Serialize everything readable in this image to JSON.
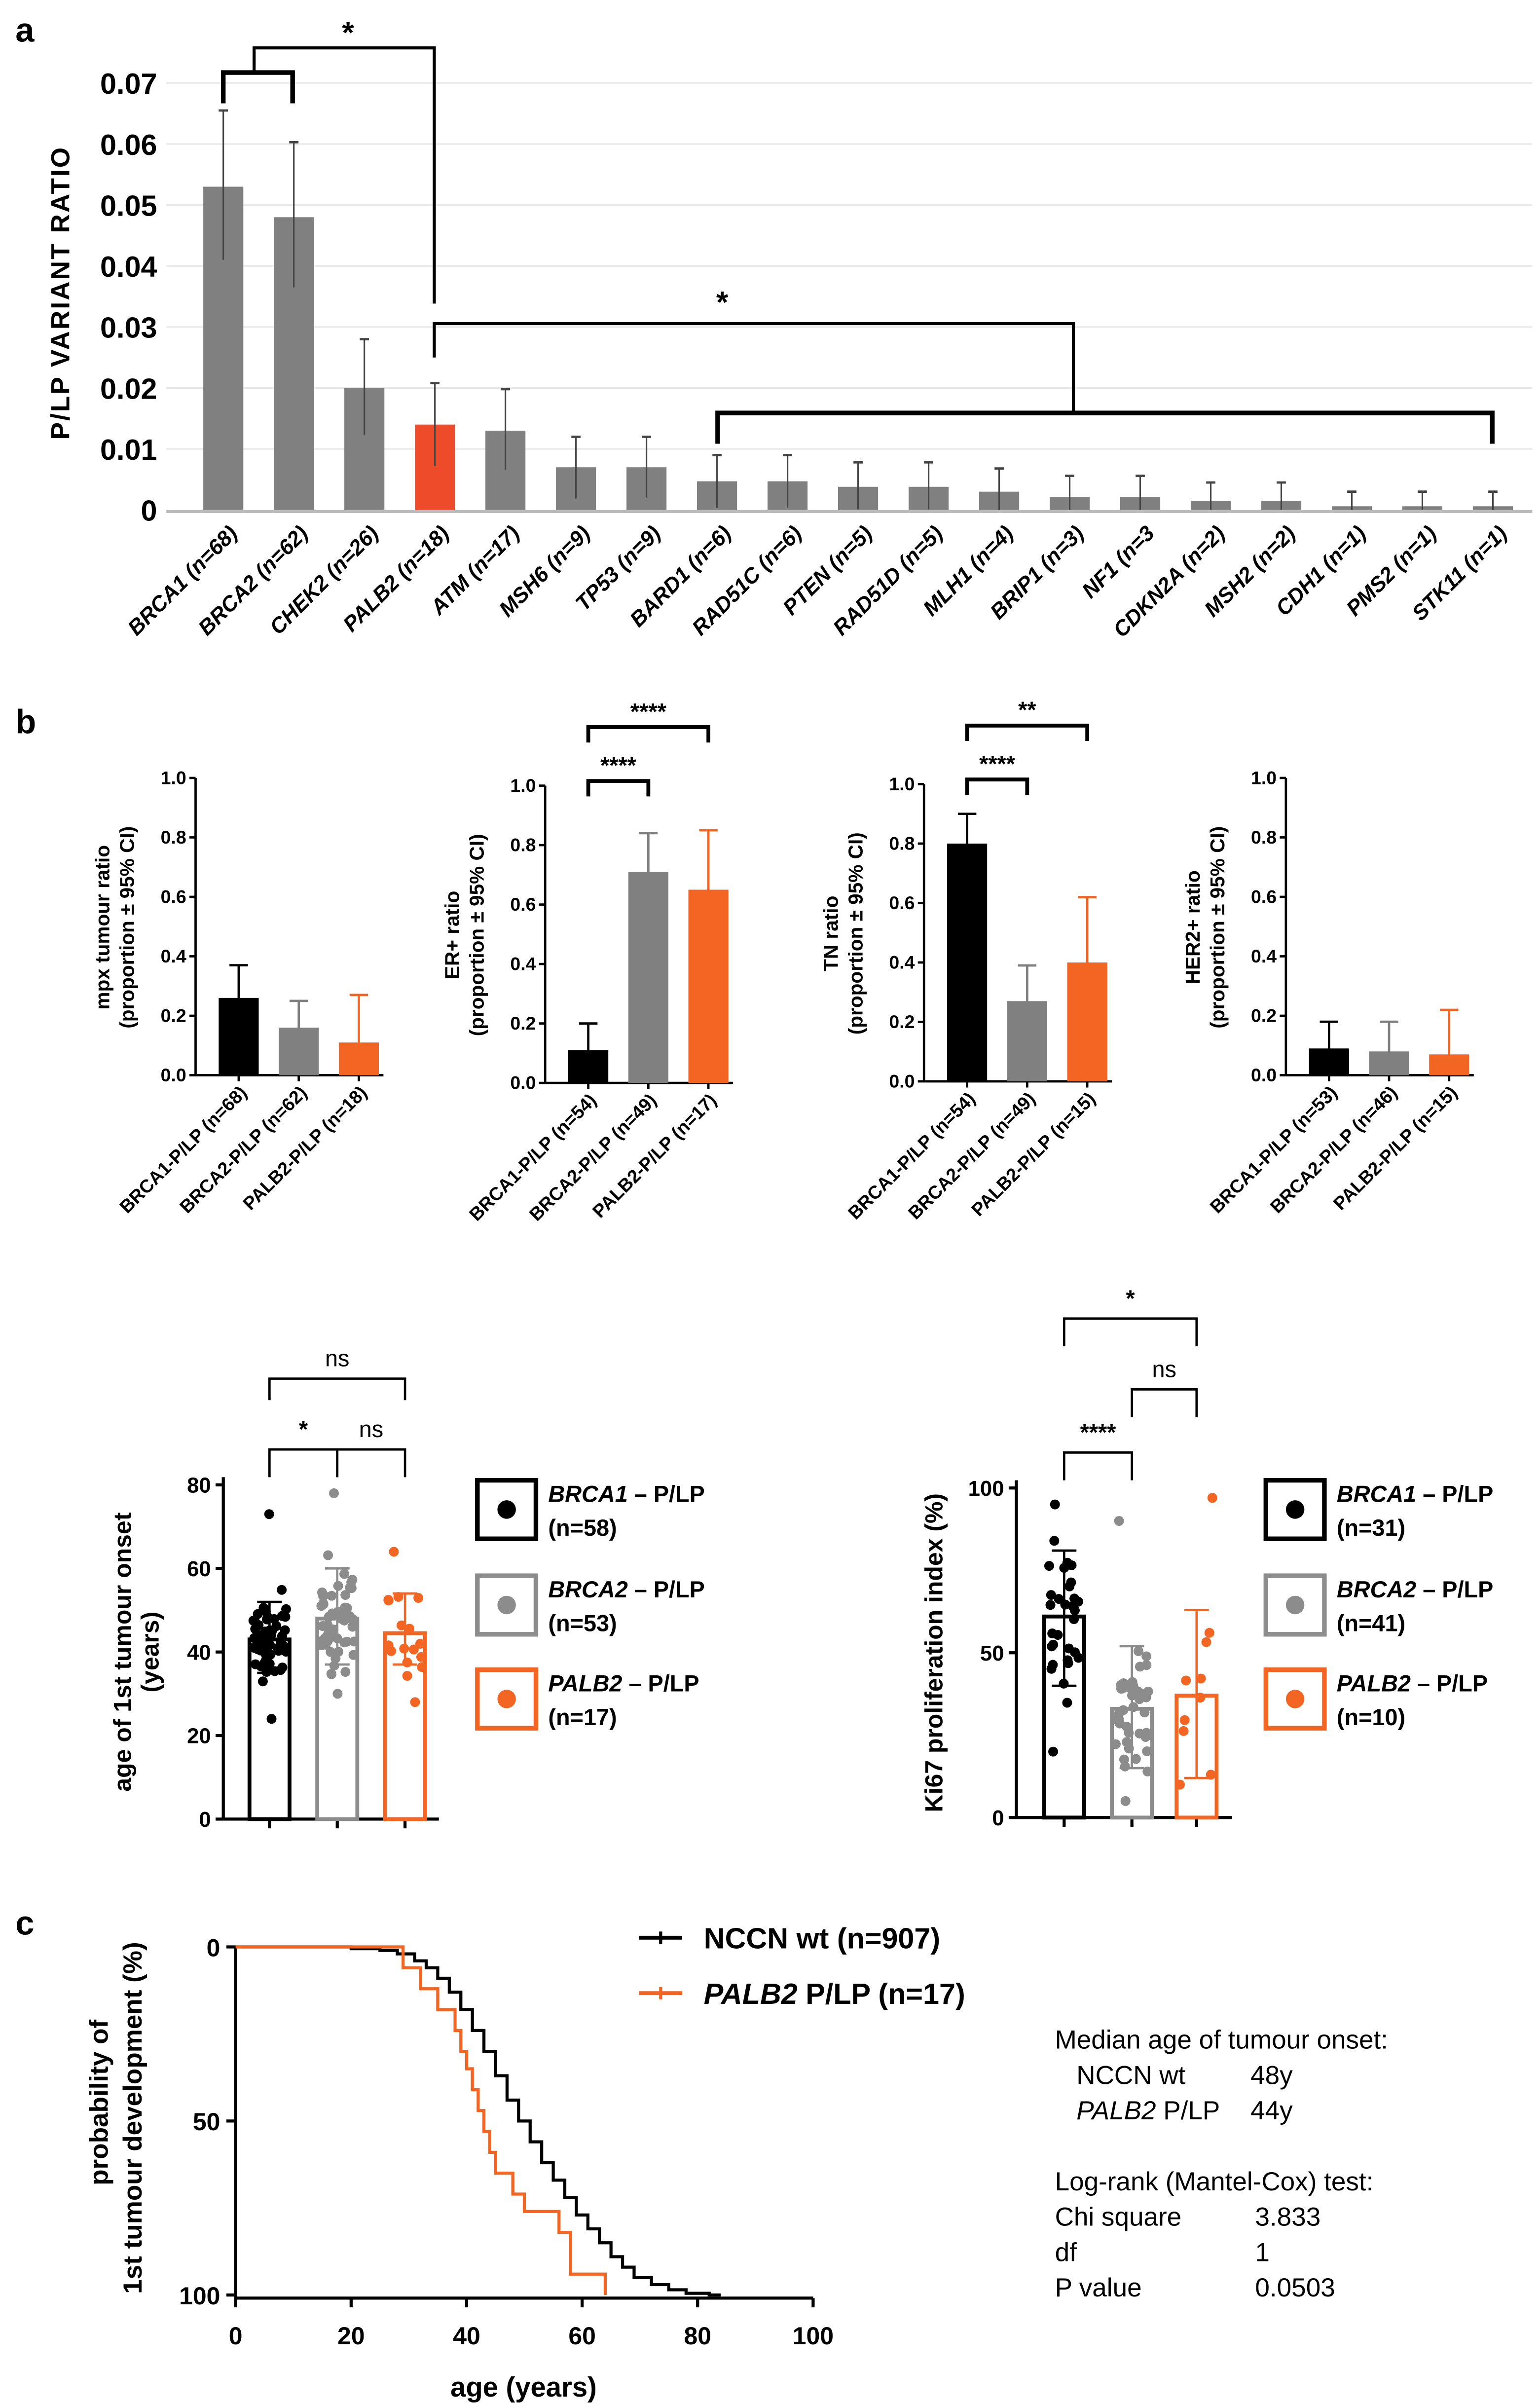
{
  "colors": {
    "grey": "#808080",
    "orange": "#f26522",
    "red": "#ee4b2b",
    "black": "#000000",
    "grid": "#e8e8e8"
  },
  "chart_data": [
    {
      "panel": "a",
      "type": "bar",
      "ylabel": "P/LP VARIANT RATIO",
      "yticks": [
        "0",
        "0.01",
        "0.02",
        "0.03",
        "0.04",
        "0.05",
        "0.06",
        "0.07"
      ],
      "ylim": [
        0,
        0.07
      ],
      "categories": [
        "BRCA1 (n=68)",
        "BRCA2 (n=62)",
        "CHEK2 (n=26)",
        "PALB2 (n=18)",
        "ATM (n=17)",
        "MSH6 (n=9)",
        "TP53 (n=9)",
        "BARD1 (n=6)",
        "RAD51C (n=6)",
        "PTEN (n=5)",
        "RAD51D (n=5)",
        "MLH1 (n=4)",
        "BRIP1 (n=3)",
        "NF1 (n=3",
        "CDKN2A (n=2)",
        "MSH2 (n=2)",
        "CDH1 (n=1)",
        "PMS2 (n=1)",
        "STK11 (n=1)"
      ],
      "values": [
        0.053,
        0.048,
        0.02,
        0.014,
        0.013,
        0.007,
        0.007,
        0.0047,
        0.0047,
        0.0038,
        0.0038,
        0.003,
        0.0021,
        0.0021,
        0.0015,
        0.0015,
        0.0006,
        0.0006,
        0.0006
      ],
      "ci_low": [
        0.041,
        0.0365,
        0.0123,
        0.0072,
        0.0066,
        0.0019,
        0.0019,
        0.0003,
        0.0003,
        0.0001,
        0.0001,
        0,
        0,
        0,
        0,
        0,
        0,
        0,
        0
      ],
      "ci_high": [
        0.0655,
        0.0603,
        0.028,
        0.0208,
        0.0198,
        0.012,
        0.012,
        0.009,
        0.009,
        0.0078,
        0.0078,
        0.0068,
        0.0056,
        0.0056,
        0.0045,
        0.0045,
        0.003,
        0.003,
        0.003
      ],
      "highlight_index": 3,
      "annotations": [
        "*",
        "*"
      ]
    },
    {
      "panel": "b1",
      "type": "bar",
      "ylabel": "mpx tumour ratio",
      "ylabel2": "(proportion ± 95% CI)",
      "yticks": [
        "0.0",
        "0.2",
        "0.4",
        "0.6",
        "0.8",
        "1.0"
      ],
      "ylim": [
        0,
        1
      ],
      "categories": [
        "BRCA1-P/LP (n=68)",
        "BRCA2-P/LP (n=62)",
        "PALB2-P/LP (n=18)"
      ],
      "values": [
        0.26,
        0.16,
        0.11
      ],
      "ci_low": [
        0.17,
        0.09,
        0.03
      ],
      "ci_high": [
        0.37,
        0.25,
        0.27
      ],
      "sig": []
    },
    {
      "panel": "b2",
      "type": "bar",
      "ylabel": "ER+ ratio",
      "ylabel2": "(proportion ± 95% CI)",
      "yticks": [
        "0.0",
        "0.2",
        "0.4",
        "0.6",
        "0.8",
        "1.0"
      ],
      "ylim": [
        0,
        1
      ],
      "categories": [
        "BRCA1-P/LP (n=54)",
        "BRCA2-P/LP (n=49)",
        "PALB2-P/LP (n=17)"
      ],
      "values": [
        0.11,
        0.71,
        0.65
      ],
      "ci_low": [
        0.05,
        0.57,
        0.41
      ],
      "ci_high": [
        0.2,
        0.84,
        0.85
      ],
      "sig": [
        {
          "from": 0,
          "to": 1,
          "label": "****"
        },
        {
          "from": 0,
          "to": 2,
          "label": "****"
        }
      ]
    },
    {
      "panel": "b3",
      "type": "bar",
      "ylabel": "TN ratio",
      "ylabel2": "(proportion ± 95% CI)",
      "yticks": [
        "0.0",
        "0.2",
        "0.4",
        "0.6",
        "0.8",
        "1.0"
      ],
      "ylim": [
        0,
        1
      ],
      "categories": [
        "BRCA1-P/LP (n=54)",
        "BRCA2-P/LP (n=49)",
        "PALB2-P/LP (n=15)"
      ],
      "values": [
        0.8,
        0.27,
        0.4
      ],
      "ci_low": [
        0.67,
        0.16,
        0.18
      ],
      "ci_high": [
        0.9,
        0.39,
        0.62
      ],
      "sig": [
        {
          "from": 0,
          "to": 1,
          "label": "****"
        },
        {
          "from": 0,
          "to": 2,
          "label": "**"
        }
      ]
    },
    {
      "panel": "b4",
      "type": "bar",
      "ylabel": "HER2+ ratio",
      "ylabel2": "(proportion ± 95% CI)",
      "yticks": [
        "0.0",
        "0.2",
        "0.4",
        "0.6",
        "0.8",
        "1.0"
      ],
      "ylim": [
        0,
        1
      ],
      "categories": [
        "BRCA1-P/LP (n=53)",
        "BRCA2-P/LP (n=46)",
        "PALB2-P/LP (n=15)"
      ],
      "values": [
        0.09,
        0.08,
        0.07
      ],
      "ci_low": [
        0.04,
        0.03,
        0.01
      ],
      "ci_high": [
        0.18,
        0.18,
        0.22
      ],
      "sig": []
    },
    {
      "panel": "b5",
      "type": "scatter",
      "ylabel": "age of 1st tumour onset",
      "ylabel2": "(years)",
      "yticks": [
        "0",
        "20",
        "40",
        "60",
        "80"
      ],
      "ylim": [
        0,
        80
      ],
      "groups": [
        {
          "gene": "BRCA1",
          "suffix": " – P/LP",
          "n_label": "(n=58)",
          "n": 58,
          "mean": 43,
          "sd_low": 35,
          "sd_high": 52,
          "min": 24,
          "max": 73
        },
        {
          "gene": "BRCA2",
          "suffix": " – P/LP",
          "n_label": "(n=53)",
          "n": 53,
          "mean": 48,
          "sd_low": 37,
          "sd_high": 60,
          "min": 30,
          "max": 78
        },
        {
          "gene": "PALB2",
          "suffix": " – P/LP",
          "n_label": "(n=17)",
          "n": 17,
          "mean": 44.5,
          "sd_low": 37,
          "sd_high": 54,
          "min": 28,
          "max": 64
        }
      ],
      "sig": [
        {
          "from": 0,
          "to": 1,
          "label": "*"
        },
        {
          "from": 1,
          "to": 2,
          "label": "ns"
        },
        {
          "from": 0,
          "to": 2,
          "label": "ns"
        }
      ]
    },
    {
      "panel": "b6",
      "type": "scatter",
      "ylabel": "Ki67 proliferation index (%)",
      "yticks": [
        "0",
        "50",
        "100"
      ],
      "ylim": [
        0,
        100
      ],
      "groups": [
        {
          "gene": "BRCA1",
          "suffix": " – P/LP",
          "n_label": "(n=31)",
          "n": 31,
          "mean": 61,
          "sd_low": 40,
          "sd_high": 81,
          "min": 20,
          "max": 95
        },
        {
          "gene": "BRCA2",
          "suffix": " – P/LP",
          "n_label": "(n=41)",
          "n": 41,
          "mean": 33,
          "sd_low": 15,
          "sd_high": 52,
          "min": 5,
          "max": 90
        },
        {
          "gene": "PALB2",
          "suffix": " – P/LP",
          "n_label": "(n=10)",
          "n": 10,
          "mean": 37,
          "sd_low": 12,
          "sd_high": 63,
          "min": 10,
          "max": 97
        }
      ],
      "sig": [
        {
          "from": 0,
          "to": 1,
          "label": "****"
        },
        {
          "from": 1,
          "to": 2,
          "label": "ns"
        },
        {
          "from": 0,
          "to": 2,
          "label": "*"
        }
      ]
    },
    {
      "panel": "c",
      "type": "line",
      "xlabel": "age (years)",
      "ylabel": "probability of",
      "ylabel2": "1st tumour development (%)",
      "xticks": [
        "0",
        "20",
        "40",
        "60",
        "80",
        "100"
      ],
      "yticks": [
        "0",
        "50",
        "100"
      ],
      "xlim": [
        0,
        100
      ],
      "ylim": [
        0,
        100
      ],
      "series": [
        {
          "name": "NCCN wt (n=907)",
          "name_italic": "",
          "color": "#000000",
          "x": [
            0,
            20,
            25,
            28,
            31,
            33,
            35,
            37,
            39,
            41,
            43,
            45,
            47,
            49,
            51,
            53,
            55,
            57,
            59,
            61,
            63,
            65,
            67,
            69,
            72,
            75,
            78,
            82
          ],
          "y": [
            0,
            0.5,
            1,
            2,
            4,
            6,
            9,
            13,
            18,
            24,
            30,
            37,
            44,
            50,
            56,
            62,
            67,
            72,
            77,
            81,
            85,
            89,
            92,
            95,
            97,
            98.5,
            99.5,
            100
          ]
        },
        {
          "name": " P/LP (n=17)",
          "name_italic": "PALB2",
          "color": "#f26522",
          "x": [
            0,
            29,
            32,
            35,
            38,
            39,
            40,
            41,
            42,
            43,
            44,
            45,
            48,
            50,
            56,
            58,
            64
          ],
          "y": [
            0,
            6,
            12,
            18,
            24,
            30,
            35,
            41,
            47,
            53,
            59,
            65,
            71,
            76,
            82,
            94,
            100
          ]
        }
      ]
    }
  ],
  "panel_labels": {
    "a": "a",
    "b": "b",
    "c": "c"
  },
  "stats": {
    "median_title": "Median age of tumour onset:",
    "median_rows": [
      {
        "label": "NCCN wt",
        "italic": "",
        "value": "48y"
      },
      {
        "label": " P/LP",
        "italic": "PALB2",
        "value": "44y"
      }
    ],
    "test_title": "Log-rank (Mantel-Cox) test:",
    "test_rows": [
      {
        "label": "Chi square",
        "value": "3.833"
      },
      {
        "label": "df",
        "value": "1"
      },
      {
        "label": "P value",
        "value": "0.0503"
      }
    ]
  }
}
